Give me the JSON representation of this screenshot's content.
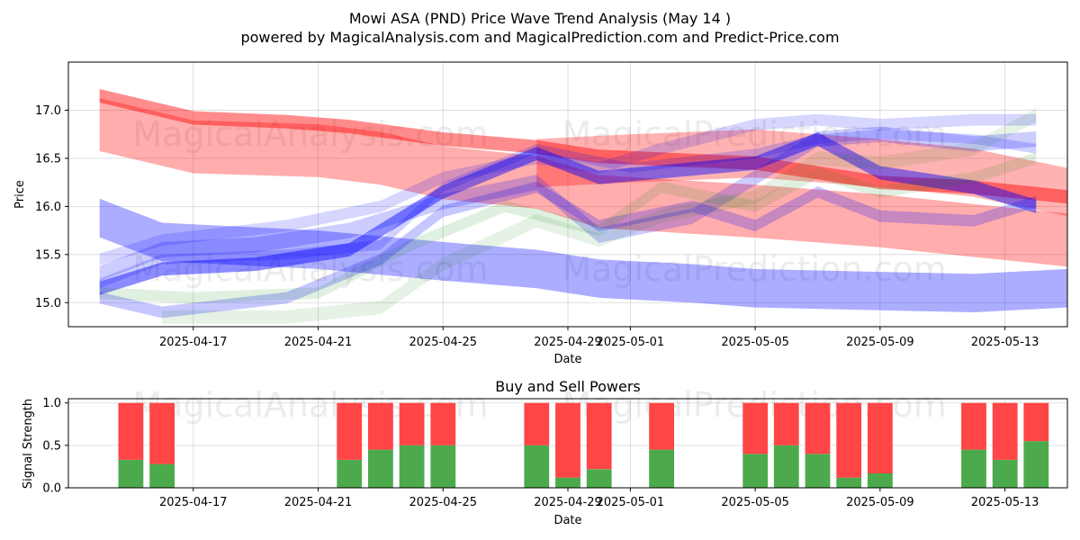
{
  "header": {
    "title": "Mowi ASA (PND) Price Wave Trend Analysis (May 14 )",
    "subtitle": "powered by MagicalAnalysis.com and MagicalPrediction.com and Predict-Price.com"
  },
  "watermarks": [
    "MagicalAnalysis.com",
    "MagicalPrediction.com"
  ],
  "colors": {
    "red_band": "#ff0000",
    "blue_band": "#0000ff",
    "green_band": "#008000",
    "buy": "#4caa4c",
    "sell": "#ff4545"
  },
  "chart_data": [
    {
      "type": "area",
      "ylabel": "Price",
      "xlabel": "Date",
      "x_tick_labels": [
        "2025-04-17",
        "2025-04-21",
        "2025-04-25",
        "2025-04-29",
        "2025-05-01",
        "2025-05-05",
        "2025-05-09",
        "2025-05-13"
      ],
      "x_tick_dates": [
        "2025-04-17",
        "2025-04-21",
        "2025-04-25",
        "2025-04-29",
        "2025-05-01",
        "2025-05-05",
        "2025-05-09",
        "2025-05-13"
      ],
      "xlim": [
        "2025-04-13",
        "2025-05-15"
      ],
      "y_tick_labels": [
        "15.0",
        "15.5",
        "16.0",
        "16.5",
        "17.0"
      ],
      "y_ticks": [
        15.0,
        15.5,
        16.0,
        16.5,
        17.0
      ],
      "ylim": [
        14.75,
        17.5
      ],
      "grid": true,
      "series": [
        {
          "color": "red",
          "opacity": 0.32,
          "width": 0.55,
          "x": [
            "2025-04-14",
            "2025-04-17",
            "2025-04-21",
            "2025-04-23",
            "2025-04-25",
            "2025-04-28",
            "2025-04-30",
            "2025-05-05",
            "2025-05-09",
            "2025-05-12",
            "2025-05-15"
          ],
          "y": [
            16.85,
            16.62,
            16.58,
            16.5,
            16.35,
            16.25,
            16.05,
            15.95,
            15.85,
            15.75,
            15.65
          ]
        },
        {
          "color": "red",
          "opacity": 0.45,
          "width": 0.14,
          "x": [
            "2025-04-14",
            "2025-04-17",
            "2025-04-20",
            "2025-04-22",
            "2025-04-25",
            "2025-04-28",
            "2025-04-30",
            "2025-05-05",
            "2025-05-09",
            "2025-05-12",
            "2025-05-15"
          ],
          "y": [
            17.15,
            16.92,
            16.88,
            16.83,
            16.7,
            16.62,
            16.52,
            16.45,
            16.25,
            16.2,
            16.1
          ]
        },
        {
          "color": "red",
          "opacity": 0.3,
          "width": 0.5,
          "x": [
            "2025-04-28",
            "2025-05-01",
            "2025-05-05",
            "2025-05-09",
            "2025-05-12",
            "2025-05-15"
          ],
          "y": [
            16.45,
            16.5,
            16.55,
            16.45,
            16.35,
            16.15
          ]
        },
        {
          "color": "blue",
          "opacity": 0.32,
          "width": 0.4,
          "x": [
            "2025-04-14",
            "2025-04-16",
            "2025-04-21",
            "2025-04-25",
            "2025-04-28",
            "2025-04-30",
            "2025-05-03",
            "2025-05-05",
            "2025-05-09",
            "2025-05-12",
            "2025-05-15"
          ],
          "y": [
            15.88,
            15.63,
            15.55,
            15.43,
            15.35,
            15.25,
            15.2,
            15.15,
            15.12,
            15.1,
            15.15
          ]
        },
        {
          "color": "blue",
          "opacity": 0.45,
          "width": 0.14,
          "x": [
            "2025-04-14",
            "2025-04-16",
            "2025-04-19",
            "2025-04-22",
            "2025-04-25",
            "2025-04-28",
            "2025-04-30",
            "2025-05-05",
            "2025-05-07",
            "2025-05-09",
            "2025-05-12",
            "2025-05-14"
          ],
          "y": [
            15.15,
            15.35,
            15.4,
            15.55,
            16.15,
            16.55,
            16.3,
            16.45,
            16.7,
            16.35,
            16.2,
            16.0
          ]
        },
        {
          "color": "blue",
          "opacity": 0.2,
          "width": 0.16,
          "x": [
            "2025-04-14",
            "2025-04-16",
            "2025-04-19",
            "2025-04-22",
            "2025-04-25",
            "2025-04-28",
            "2025-04-30",
            "2025-05-03",
            "2025-05-05",
            "2025-05-07",
            "2025-05-09",
            "2025-05-12",
            "2025-05-14"
          ],
          "y": [
            15.3,
            15.55,
            15.6,
            15.75,
            16.05,
            16.25,
            15.7,
            15.9,
            16.3,
            16.7,
            16.75,
            16.65,
            16.7
          ]
        },
        {
          "color": "blue",
          "opacity": 0.22,
          "width": 0.12,
          "x": [
            "2025-04-14",
            "2025-04-16",
            "2025-04-20",
            "2025-04-23",
            "2025-04-25",
            "2025-04-28",
            "2025-04-30",
            "2025-05-03",
            "2025-05-05",
            "2025-05-07",
            "2025-05-09",
            "2025-05-12",
            "2025-05-14"
          ],
          "y": [
            15.05,
            14.9,
            15.05,
            15.45,
            15.95,
            16.2,
            15.8,
            16.0,
            15.8,
            16.15,
            15.9,
            15.85,
            16.05
          ]
        },
        {
          "color": "blue",
          "opacity": 0.16,
          "width": 0.12,
          "x": [
            "2025-04-14",
            "2025-04-16",
            "2025-04-20",
            "2025-04-23",
            "2025-04-25",
            "2025-04-28",
            "2025-04-30",
            "2025-05-02",
            "2025-05-05",
            "2025-05-07",
            "2025-05-09",
            "2025-05-12",
            "2025-05-14"
          ],
          "y": [
            15.45,
            15.65,
            15.8,
            16.0,
            16.3,
            16.5,
            16.4,
            16.6,
            16.85,
            16.9,
            16.85,
            16.9,
            16.9
          ]
        },
        {
          "color": "blue",
          "opacity": 0.18,
          "width": 0.1,
          "x": [
            "2025-04-14",
            "2025-04-16",
            "2025-04-20",
            "2025-04-23",
            "2025-04-25",
            "2025-04-28",
            "2025-05-01",
            "2025-05-05",
            "2025-05-07",
            "2025-05-09",
            "2025-05-12",
            "2025-05-14"
          ],
          "y": [
            15.2,
            15.45,
            15.5,
            15.6,
            16.2,
            16.6,
            16.4,
            16.55,
            16.7,
            16.75,
            16.7,
            16.6
          ]
        },
        {
          "color": "green",
          "opacity": 0.1,
          "width": 0.14,
          "x": [
            "2025-04-16",
            "2025-04-20",
            "2025-04-23",
            "2025-04-25",
            "2025-04-28",
            "2025-04-30",
            "2025-05-02",
            "2025-05-05",
            "2025-05-07",
            "2025-05-09",
            "2025-05-12",
            "2025-05-14"
          ],
          "y": [
            14.85,
            14.85,
            14.95,
            15.4,
            15.85,
            15.65,
            15.9,
            16.1,
            16.5,
            16.45,
            16.6,
            16.95
          ]
        },
        {
          "color": "green",
          "opacity": 0.12,
          "width": 0.12,
          "x": [
            "2025-04-14",
            "2025-04-17",
            "2025-04-21",
            "2025-04-24",
            "2025-04-27",
            "2025-04-30",
            "2025-05-02",
            "2025-05-05",
            "2025-05-07",
            "2025-05-09",
            "2025-05-12",
            "2025-05-14"
          ],
          "y": [
            15.1,
            15.05,
            15.1,
            15.6,
            16.0,
            15.75,
            16.2,
            16.0,
            16.35,
            16.15,
            16.3,
            16.5
          ]
        }
      ]
    },
    {
      "type": "bar",
      "title": "Buy and Sell Powers",
      "ylabel": "Signal Strength",
      "xlabel": "Date",
      "x_tick_labels": [
        "2025-04-17",
        "2025-04-21",
        "2025-04-25",
        "2025-04-29",
        "2025-05-01",
        "2025-05-05",
        "2025-05-09",
        "2025-05-13"
      ],
      "x_tick_dates": [
        "2025-04-17",
        "2025-04-21",
        "2025-04-25",
        "2025-04-29",
        "2025-05-01",
        "2025-05-05",
        "2025-05-09",
        "2025-05-13"
      ],
      "xlim": [
        "2025-04-13",
        "2025-05-15"
      ],
      "y_tick_labels": [
        "0.0",
        "0.5",
        "1.0"
      ],
      "y_ticks": [
        0.0,
        0.5,
        1.0
      ],
      "ylim": [
        0,
        1.05
      ],
      "grid": true,
      "dates": [
        "2025-04-15",
        "2025-04-16",
        "2025-04-22",
        "2025-04-23",
        "2025-04-24",
        "2025-04-25",
        "2025-04-28",
        "2025-04-29",
        "2025-04-30",
        "2025-05-02",
        "2025-05-05",
        "2025-05-06",
        "2025-05-07",
        "2025-05-08",
        "2025-05-09",
        "2025-05-12",
        "2025-05-13",
        "2025-05-14"
      ],
      "series": [
        {
          "name": "Buy",
          "values": [
            0.33,
            0.28,
            0.33,
            0.45,
            0.5,
            0.5,
            0.5,
            0.12,
            0.22,
            0.45,
            0.4,
            0.5,
            0.4,
            0.12,
            0.17,
            0.45,
            0.33,
            0.55
          ]
        },
        {
          "name": "Sell",
          "values": [
            0.67,
            0.72,
            0.67,
            0.55,
            0.5,
            0.5,
            0.5,
            0.88,
            0.78,
            0.55,
            0.6,
            0.5,
            0.6,
            0.88,
            0.83,
            0.55,
            0.67,
            0.45
          ]
        }
      ]
    }
  ]
}
